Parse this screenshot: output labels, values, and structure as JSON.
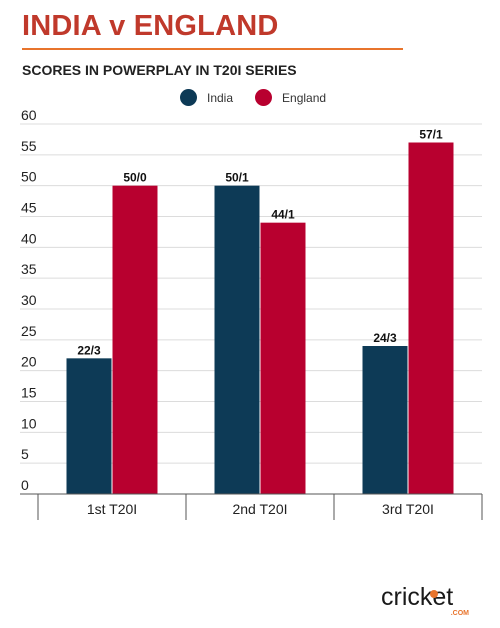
{
  "header": {
    "title": "INDIA v ENGLAND",
    "subtitle": "SCORES IN POWERPLAY IN T20I SERIES"
  },
  "colors": {
    "india": "#0d3a56",
    "england": "#b8002f",
    "title": "#c0392b",
    "accent": "#e8742c"
  },
  "logo": {
    "text": "cricket",
    "suffix": ".COM"
  },
  "chart_data": {
    "type": "bar",
    "title": "SCORES IN POWERPLAY IN T20I SERIES",
    "categories": [
      "1st T20I",
      "2nd T20I",
      "3rd T20I"
    ],
    "series": [
      {
        "name": "India",
        "values": [
          22,
          50,
          24
        ],
        "labels": [
          "22/3",
          "50/1",
          "24/3"
        ]
      },
      {
        "name": "England",
        "values": [
          50,
          44,
          57
        ],
        "labels": [
          "50/0",
          "44/1",
          "57/1"
        ]
      }
    ],
    "ylim": [
      0,
      60
    ],
    "yticks": [
      0,
      5,
      10,
      15,
      20,
      25,
      30,
      35,
      40,
      45,
      50,
      55,
      60
    ],
    "grid": true,
    "legend": "top-center",
    "xlabel": "",
    "ylabel": ""
  }
}
